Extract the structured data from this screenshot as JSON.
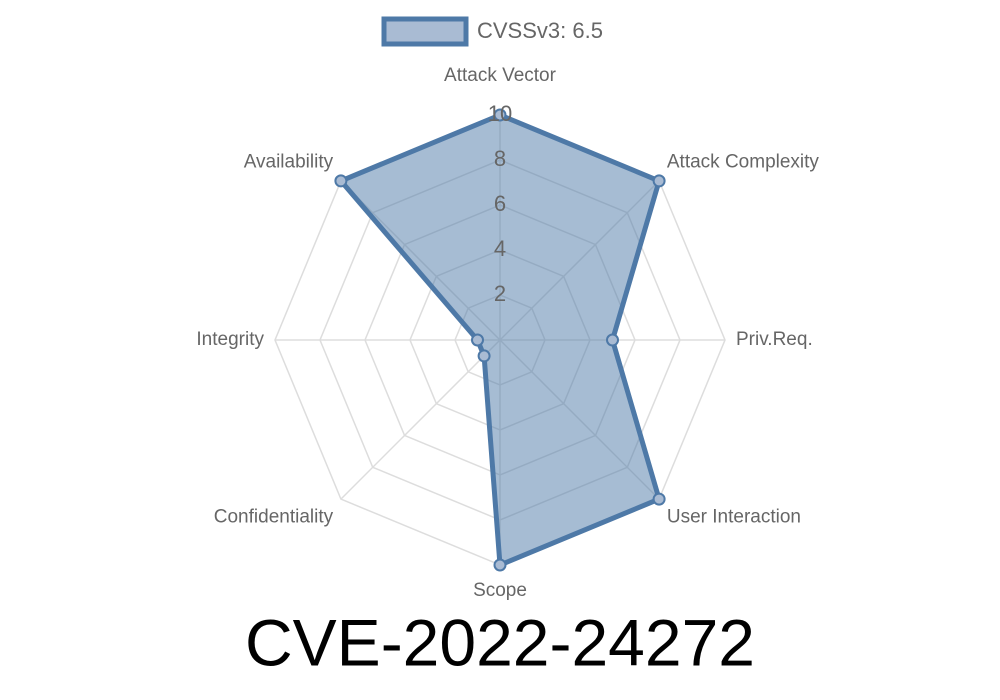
{
  "chart_data": {
    "type": "radar",
    "title": "CVE-2022-24272",
    "categories": [
      "Attack Vector",
      "Attack Complexity",
      "Priv.Req.",
      "User Interaction",
      "Scope",
      "Confidentiality",
      "Integrity",
      "Availability"
    ],
    "series": [
      {
        "name": "CVSSv3: 6.5",
        "color": "#4e79a7",
        "values": [
          10,
          10,
          5,
          10,
          10,
          1,
          1,
          10
        ]
      }
    ],
    "rlim": [
      0,
      10
    ],
    "rticks": [
      2,
      4,
      6,
      8,
      10
    ],
    "grid": true,
    "legend": "top"
  }
}
